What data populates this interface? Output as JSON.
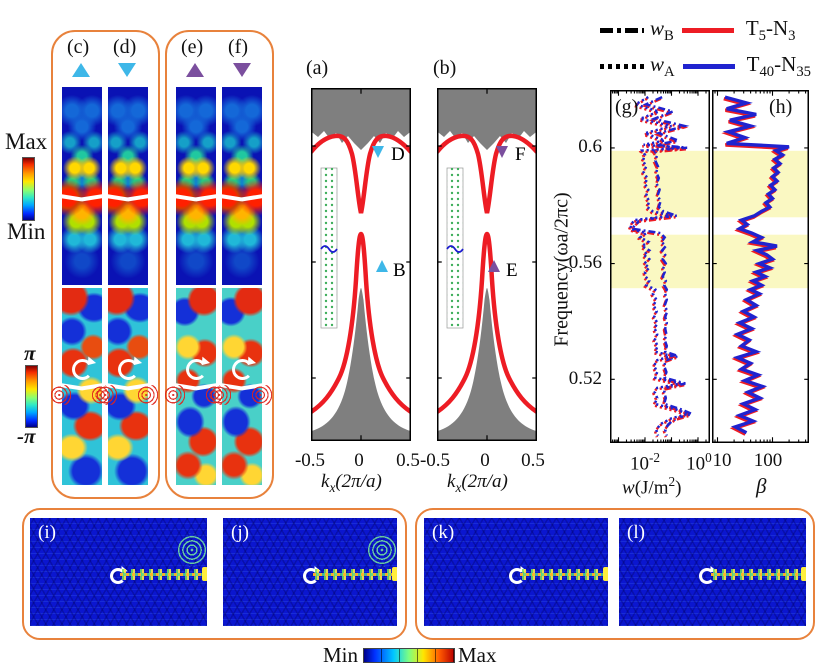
{
  "colors": {
    "orange_box": "#E8823C",
    "red_curve": "#ED1C24",
    "blue_curve": "#2023CF",
    "cyan_marker": "#3EB7E8",
    "purple_marker": "#7B4F9E",
    "gray_band": "#7F7F7F",
    "yellow_highlight": "#FAF8C2"
  },
  "left": {
    "colorbar_field": {
      "max": "Max",
      "min": "Min"
    },
    "colorbar_phase": {
      "top": "π",
      "bottom": "-π"
    },
    "panel_labels": {
      "c": "(c)",
      "d": "(d)",
      "e": "(e)",
      "f": "(f)"
    }
  },
  "band": {
    "a": {
      "label": "(a)",
      "upper_marker": "D",
      "lower_marker": "B"
    },
    "b": {
      "label": "(b)",
      "upper_marker": "F",
      "lower_marker": "E"
    },
    "xticks": [
      "-0.5",
      "0",
      "0.5"
    ],
    "xlabel_pre": "k",
    "xlabel_sub": "x",
    "xlabel_post": "(2π/a)"
  },
  "freq_axis": {
    "label": "Frequency(ωa/2πc)",
    "ticks": [
      "0.6",
      "0.56",
      "0.52"
    ]
  },
  "legend": {
    "rows": [
      {
        "sym": "w",
        "sym_sub": "B",
        "label_t": "T",
        "label_t_sub": "5",
        "label_n": "-N",
        "label_n_sub": "3"
      },
      {
        "sym": "w",
        "sym_sub": "A",
        "label_t": "T",
        "label_t_sub": "40",
        "label_n": "-N",
        "label_n_sub": "35"
      }
    ]
  },
  "gh": {
    "g_label": "(g)",
    "h_label": "(h)",
    "g_xtick1_base": "10",
    "g_xtick1_sup": "-2",
    "g_xtick2_base": "10",
    "g_xtick2_sup": "0",
    "g_xlabel_pre": "w",
    "g_xlabel_mid": "(J/m",
    "g_xlabel_sup": "2",
    "g_xlabel_close": ")",
    "h_xticks": [
      "10",
      "100"
    ],
    "h_xlabel": "β"
  },
  "bottom": {
    "panel_labels": {
      "i": "(i)",
      "j": "(j)",
      "k": "(k)",
      "l": "(l)"
    },
    "colorbar": {
      "min": "Min",
      "max": "Max"
    }
  },
  "chart_data": [
    {
      "id": "a",
      "type": "line",
      "title": "(a)",
      "xlabel": "kx(2π/a)",
      "xlim": [
        -0.5,
        0.5
      ],
      "xticks": [
        -0.5,
        0,
        0.5
      ],
      "ylabel": "Frequency(ωa/2πc)",
      "description": "Projected band structure: gray bulk continua top and bottom, two red edge-state bands; upper band W-shaped with dip at kx=0, lower band sharp peak at kx=0; inset shows supercell lattice with interface.",
      "markers": [
        {
          "label": "D",
          "shape": "triangle-down",
          "color": "#3EB7E8",
          "kx": 0.17,
          "on": "upper red band shoulder"
        },
        {
          "label": "B",
          "shape": "triangle-up",
          "color": "#3EB7E8",
          "kx": 0.14,
          "on": "lower red band flank"
        }
      ]
    },
    {
      "id": "b",
      "type": "line",
      "title": "(b)",
      "xlabel": "kx(2π/a)",
      "xlim": [
        -0.5,
        0.5
      ],
      "xticks": [
        -0.5,
        0,
        0.5
      ],
      "description": "Same projected band structure as (a) for the second structure.",
      "markers": [
        {
          "label": "F",
          "shape": "triangle-down",
          "color": "#7B4F9E",
          "kx": 0.17,
          "on": "upper red band shoulder"
        },
        {
          "label": "E",
          "shape": "triangle-up",
          "color": "#7B4F9E",
          "kx": 0.12,
          "on": "lower red band flank"
        }
      ]
    },
    {
      "id": "g",
      "type": "line",
      "title": "(g)",
      "xlabel": "w(J/m2)",
      "xscale": "log",
      "xlim_log10": [
        -3.32,
        0.45
      ],
      "xticks": [
        0.01,
        1
      ],
      "ylabel": "Frequency(ωa/2πc)",
      "ylim": [
        0.498,
        0.62
      ],
      "yticks": [
        0.6,
        0.56,
        0.52
      ],
      "highlight_bands": [
        [
          0.576,
          0.599
        ],
        [
          0.5515,
          0.57
        ]
      ],
      "legend_note": "dash-dot = wB, dotted = wA; red = T5-N3, blue = T40-N35",
      "series": [
        {
          "name": "wB",
          "style": "dashdot",
          "colors": [
            "#ED1C24",
            "#2023CF"
          ],
          "points": [
            [
              0.617,
              0.04
            ],
            [
              0.6145,
              0.01
            ],
            [
              0.612,
              0.1
            ],
            [
              0.6095,
              0.02
            ],
            [
              0.607,
              0.28
            ],
            [
              0.6045,
              0.03
            ],
            [
              0.602,
              0.16
            ],
            [
              0.6005,
              0.025
            ],
            [
              0.5995,
              0.35
            ],
            [
              0.5985,
              0.02
            ],
            [
              0.597,
              0.026
            ],
            [
              0.595,
              0.022
            ],
            [
              0.593,
              0.028
            ],
            [
              0.591,
              0.024
            ],
            [
              0.589,
              0.03
            ],
            [
              0.587,
              0.025
            ],
            [
              0.585,
              0.032
            ],
            [
              0.583,
              0.027
            ],
            [
              0.581,
              0.035
            ],
            [
              0.579,
              0.03
            ],
            [
              0.5775,
              0.045
            ],
            [
              0.576,
              0.14
            ],
            [
              0.5745,
              0.006
            ],
            [
              0.573,
              0.004
            ],
            [
              0.5715,
              0.003
            ],
            [
              0.57,
              0.035
            ],
            [
              0.5685,
              0.05
            ],
            [
              0.567,
              0.038
            ],
            [
              0.5655,
              0.055
            ],
            [
              0.564,
              0.04
            ],
            [
              0.5625,
              0.052
            ],
            [
              0.561,
              0.042
            ],
            [
              0.5595,
              0.055
            ],
            [
              0.558,
              0.045
            ],
            [
              0.5565,
              0.05
            ],
            [
              0.555,
              0.042
            ],
            [
              0.5535,
              0.055
            ],
            [
              0.552,
              0.048
            ],
            [
              0.5505,
              0.06
            ],
            [
              0.549,
              0.052
            ],
            [
              0.547,
              0.06
            ],
            [
              0.545,
              0.05
            ],
            [
              0.543,
              0.062
            ],
            [
              0.541,
              0.052
            ],
            [
              0.539,
              0.06
            ],
            [
              0.537,
              0.052
            ],
            [
              0.535,
              0.058
            ],
            [
              0.533,
              0.05
            ],
            [
              0.531,
              0.06
            ],
            [
              0.529,
              0.052
            ],
            [
              0.5275,
              0.16
            ],
            [
              0.526,
              0.055
            ],
            [
              0.524,
              0.048
            ],
            [
              0.522,
              0.058
            ],
            [
              0.52,
              0.05
            ],
            [
              0.518,
              0.3
            ],
            [
              0.5165,
              0.055
            ],
            [
              0.515,
              0.048
            ],
            [
              0.513,
              0.055
            ],
            [
              0.511,
              0.048
            ],
            [
              0.509,
              0.22
            ],
            [
              0.5075,
              0.52
            ],
            [
              0.506,
              0.14
            ],
            [
              0.504,
              0.07
            ],
            [
              0.502,
              0.052
            ],
            [
              0.5,
              0.06
            ]
          ]
        },
        {
          "name": "wA",
          "style": "dotted",
          "colors": [
            "#ED1C24",
            "#2023CF"
          ],
          "points": [
            [
              0.617,
              0.012
            ],
            [
              0.6145,
              0.004
            ],
            [
              0.612,
              0.03
            ],
            [
              0.6095,
              0.006
            ],
            [
              0.607,
              0.09
            ],
            [
              0.6045,
              0.009
            ],
            [
              0.602,
              0.05
            ],
            [
              0.6005,
              0.008
            ],
            [
              0.5995,
              0.25
            ],
            [
              0.5985,
              0.007
            ],
            [
              0.597,
              0.009
            ],
            [
              0.595,
              0.0075
            ],
            [
              0.593,
              0.01
            ],
            [
              0.591,
              0.008
            ],
            [
              0.589,
              0.011
            ],
            [
              0.587,
              0.009
            ],
            [
              0.585,
              0.012
            ],
            [
              0.583,
              0.01
            ],
            [
              0.581,
              0.013
            ],
            [
              0.579,
              0.011
            ],
            [
              0.5775,
              0.018
            ],
            [
              0.576,
              0.09
            ],
            [
              0.5745,
              0.0035
            ],
            [
              0.573,
              0.0028
            ],
            [
              0.5715,
              0.0025
            ],
            [
              0.57,
              0.01
            ],
            [
              0.5685,
              0.006
            ],
            [
              0.567,
              0.012
            ],
            [
              0.5655,
              0.007
            ],
            [
              0.564,
              0.013
            ],
            [
              0.5625,
              0.008
            ],
            [
              0.561,
              0.013
            ],
            [
              0.5595,
              0.0085
            ],
            [
              0.558,
              0.013
            ],
            [
              0.5565,
              0.009
            ],
            [
              0.555,
              0.0095
            ],
            [
              0.5535,
              0.013
            ],
            [
              0.552,
              0.01
            ],
            [
              0.5505,
              0.022
            ],
            [
              0.549,
              0.018
            ],
            [
              0.547,
              0.024
            ],
            [
              0.545,
              0.019
            ],
            [
              0.543,
              0.025
            ],
            [
              0.541,
              0.02
            ],
            [
              0.539,
              0.026
            ],
            [
              0.537,
              0.021
            ],
            [
              0.535,
              0.026
            ],
            [
              0.533,
              0.021
            ],
            [
              0.531,
              0.027
            ],
            [
              0.529,
              0.022
            ],
            [
              0.5275,
              0.09
            ],
            [
              0.526,
              0.024
            ],
            [
              0.524,
              0.02
            ],
            [
              0.522,
              0.026
            ],
            [
              0.52,
              0.022
            ],
            [
              0.518,
              0.2
            ],
            [
              0.5165,
              0.026
            ],
            [
              0.515,
              0.021
            ],
            [
              0.513,
              0.026
            ],
            [
              0.511,
              0.021
            ],
            [
              0.509,
              0.14
            ],
            [
              0.5075,
              0.38
            ],
            [
              0.506,
              0.09
            ],
            [
              0.504,
              0.035
            ],
            [
              0.502,
              0.024
            ],
            [
              0.5,
              0.028
            ]
          ]
        }
      ]
    },
    {
      "id": "h",
      "type": "line",
      "title": "(h)",
      "xlabel": "β",
      "xscale": "log",
      "xlim_log10": [
        0.9,
        2.65
      ],
      "xticks": [
        10,
        100
      ],
      "ylabel": "Frequency(ωa/2πc)",
      "ylim": [
        0.498,
        0.62
      ],
      "yticks": [
        0.6,
        0.56,
        0.52
      ],
      "highlight_bands": [
        [
          0.576,
          0.599
        ],
        [
          0.5515,
          0.57
        ]
      ],
      "legend_note": "red = T5-N3, blue = T40-N35 (solid)",
      "series": [
        {
          "name": "beta",
          "style": "solid",
          "colors": [
            "#ED1C24",
            "#2023CF"
          ],
          "points": [
            [
              0.617,
              13
            ],
            [
              0.615,
              32
            ],
            [
              0.613,
              14
            ],
            [
              0.611,
              48
            ],
            [
              0.609,
              16
            ],
            [
              0.607,
              38
            ],
            [
              0.605,
              15
            ],
            [
              0.603,
              30
            ],
            [
              0.601,
              14
            ],
            [
              0.5998,
              190
            ],
            [
              0.5985,
              110
            ],
            [
              0.597,
              145
            ],
            [
              0.5955,
              105
            ],
            [
              0.594,
              130
            ],
            [
              0.5925,
              100
            ],
            [
              0.591,
              120
            ],
            [
              0.5895,
              95
            ],
            [
              0.588,
              115
            ],
            [
              0.5865,
              88
            ],
            [
              0.585,
              105
            ],
            [
              0.5835,
              80
            ],
            [
              0.582,
              95
            ],
            [
              0.5805,
              72
            ],
            [
              0.579,
              85
            ],
            [
              0.5775,
              60
            ],
            [
              0.576,
              45
            ],
            [
              0.5745,
              26
            ],
            [
              0.573,
              33
            ],
            [
              0.5715,
              24
            ],
            [
              0.57,
              40
            ],
            [
              0.5685,
              60
            ],
            [
              0.567,
              42
            ],
            [
              0.5655,
              115
            ],
            [
              0.564,
              50
            ],
            [
              0.5625,
              75
            ],
            [
              0.561,
              95
            ],
            [
              0.5595,
              55
            ],
            [
              0.558,
              85
            ],
            [
              0.5565,
              48
            ],
            [
              0.555,
              70
            ],
            [
              0.5535,
              42
            ],
            [
              0.552,
              60
            ],
            [
              0.5505,
              38
            ],
            [
              0.549,
              55
            ],
            [
              0.547,
              32
            ],
            [
              0.545,
              48
            ],
            [
              0.543,
              28
            ],
            [
              0.541,
              44
            ],
            [
              0.539,
              24
            ],
            [
              0.537,
              40
            ],
            [
              0.535,
              22
            ],
            [
              0.533,
              36
            ],
            [
              0.531,
              26
            ],
            [
              0.529,
              48
            ],
            [
              0.527,
              22
            ],
            [
              0.525,
              38
            ],
            [
              0.523,
              26
            ],
            [
              0.521,
              52
            ],
            [
              0.519,
              30
            ],
            [
              0.517,
              62
            ],
            [
              0.515,
              34
            ],
            [
              0.513,
              56
            ],
            [
              0.511,
              28
            ],
            [
              0.509,
              46
            ],
            [
              0.507,
              24
            ],
            [
              0.505,
              42
            ],
            [
              0.503,
              20
            ],
            [
              0.501,
              32
            ]
          ]
        }
      ]
    }
  ]
}
